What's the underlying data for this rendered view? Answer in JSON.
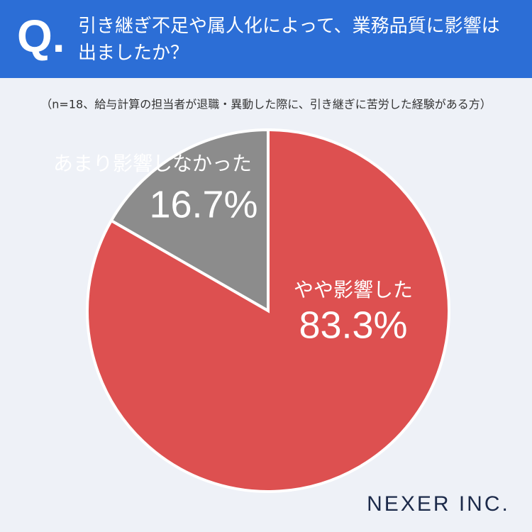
{
  "header": {
    "mark": "Q.",
    "question": "引き継ぎ不足や属人化によって、業務品質に影響は出ましたか？"
  },
  "chart_data": {
    "type": "pie",
    "subtitle": "（n=18、給与計算の担当者が退職・異動した際に、引き継ぎに苦労した経験がある方）",
    "categories": [
      "やや影響した",
      "あまり影響しなかった"
    ],
    "values": [
      83.3,
      16.7
    ],
    "value_labels": [
      "83.3%",
      "16.7%"
    ],
    "colors": [
      "#dd5050",
      "#8c8c8c"
    ]
  },
  "logo": "NEXER INC."
}
